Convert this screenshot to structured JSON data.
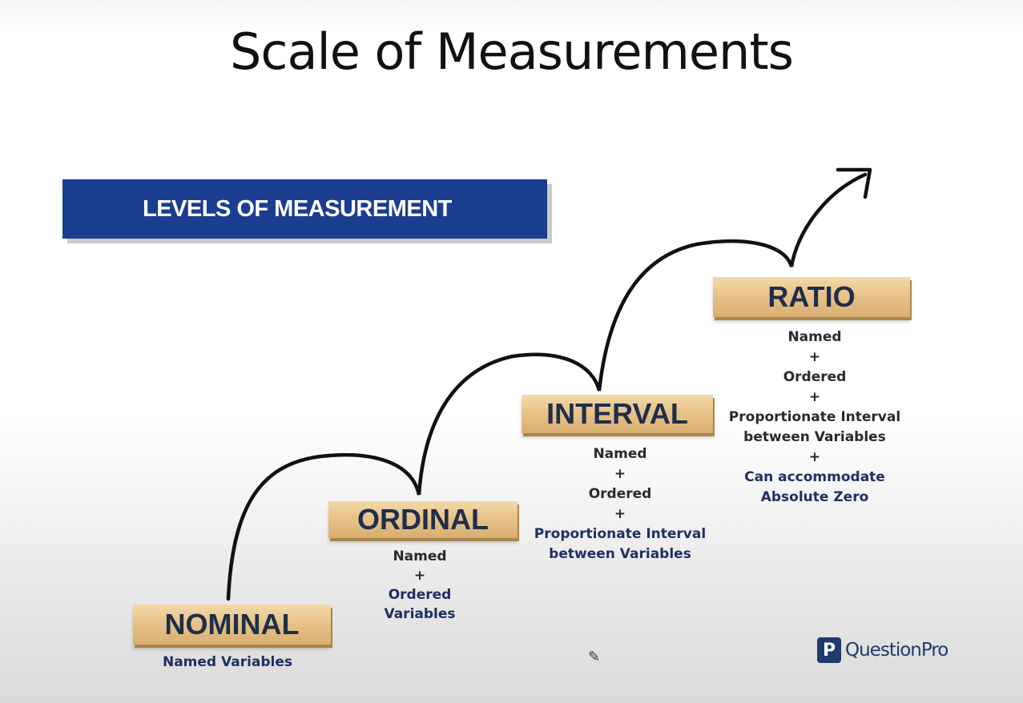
{
  "title": "Scale of Measurements",
  "banner": {
    "label": "LEVELS OF MEASUREMENT",
    "color": "#1a3d8f"
  },
  "levels": [
    {
      "name": "NOMINAL",
      "lines": [
        {
          "text": "Named Variables",
          "style": "blue"
        }
      ]
    },
    {
      "name": "ORDINAL",
      "lines": [
        {
          "text": "Named",
          "style": "dark"
        },
        {
          "text": "+",
          "style": "dark"
        },
        {
          "text": "Ordered",
          "style": "blue"
        },
        {
          "text": "Variables",
          "style": "blue"
        }
      ]
    },
    {
      "name": "INTERVAL",
      "lines": [
        {
          "text": "Named",
          "style": "dark"
        },
        {
          "text": "+",
          "style": "dark"
        },
        {
          "text": "Ordered",
          "style": "dark"
        },
        {
          "text": "+",
          "style": "dark"
        },
        {
          "text": "Proportionate Interval",
          "style": "blue"
        },
        {
          "text": "between Variables",
          "style": "blue"
        }
      ]
    },
    {
      "name": "RATIO",
      "lines": [
        {
          "text": "Named",
          "style": "dark"
        },
        {
          "text": "+",
          "style": "dark"
        },
        {
          "text": "Ordered",
          "style": "dark"
        },
        {
          "text": "+",
          "style": "dark"
        },
        {
          "text": "Proportionate Interval",
          "style": "dark"
        },
        {
          "text": "between Variables",
          "style": "dark"
        },
        {
          "text": "+",
          "style": "dark"
        },
        {
          "text": "Can accommodate",
          "style": "blue"
        },
        {
          "text": "Absolute Zero",
          "style": "blue"
        }
      ]
    }
  ],
  "logo": {
    "mark": "P",
    "text": "QuestionPro"
  },
  "icons": {
    "pencil": "pencil-icon",
    "arrow": "curved-arrow-icon"
  }
}
